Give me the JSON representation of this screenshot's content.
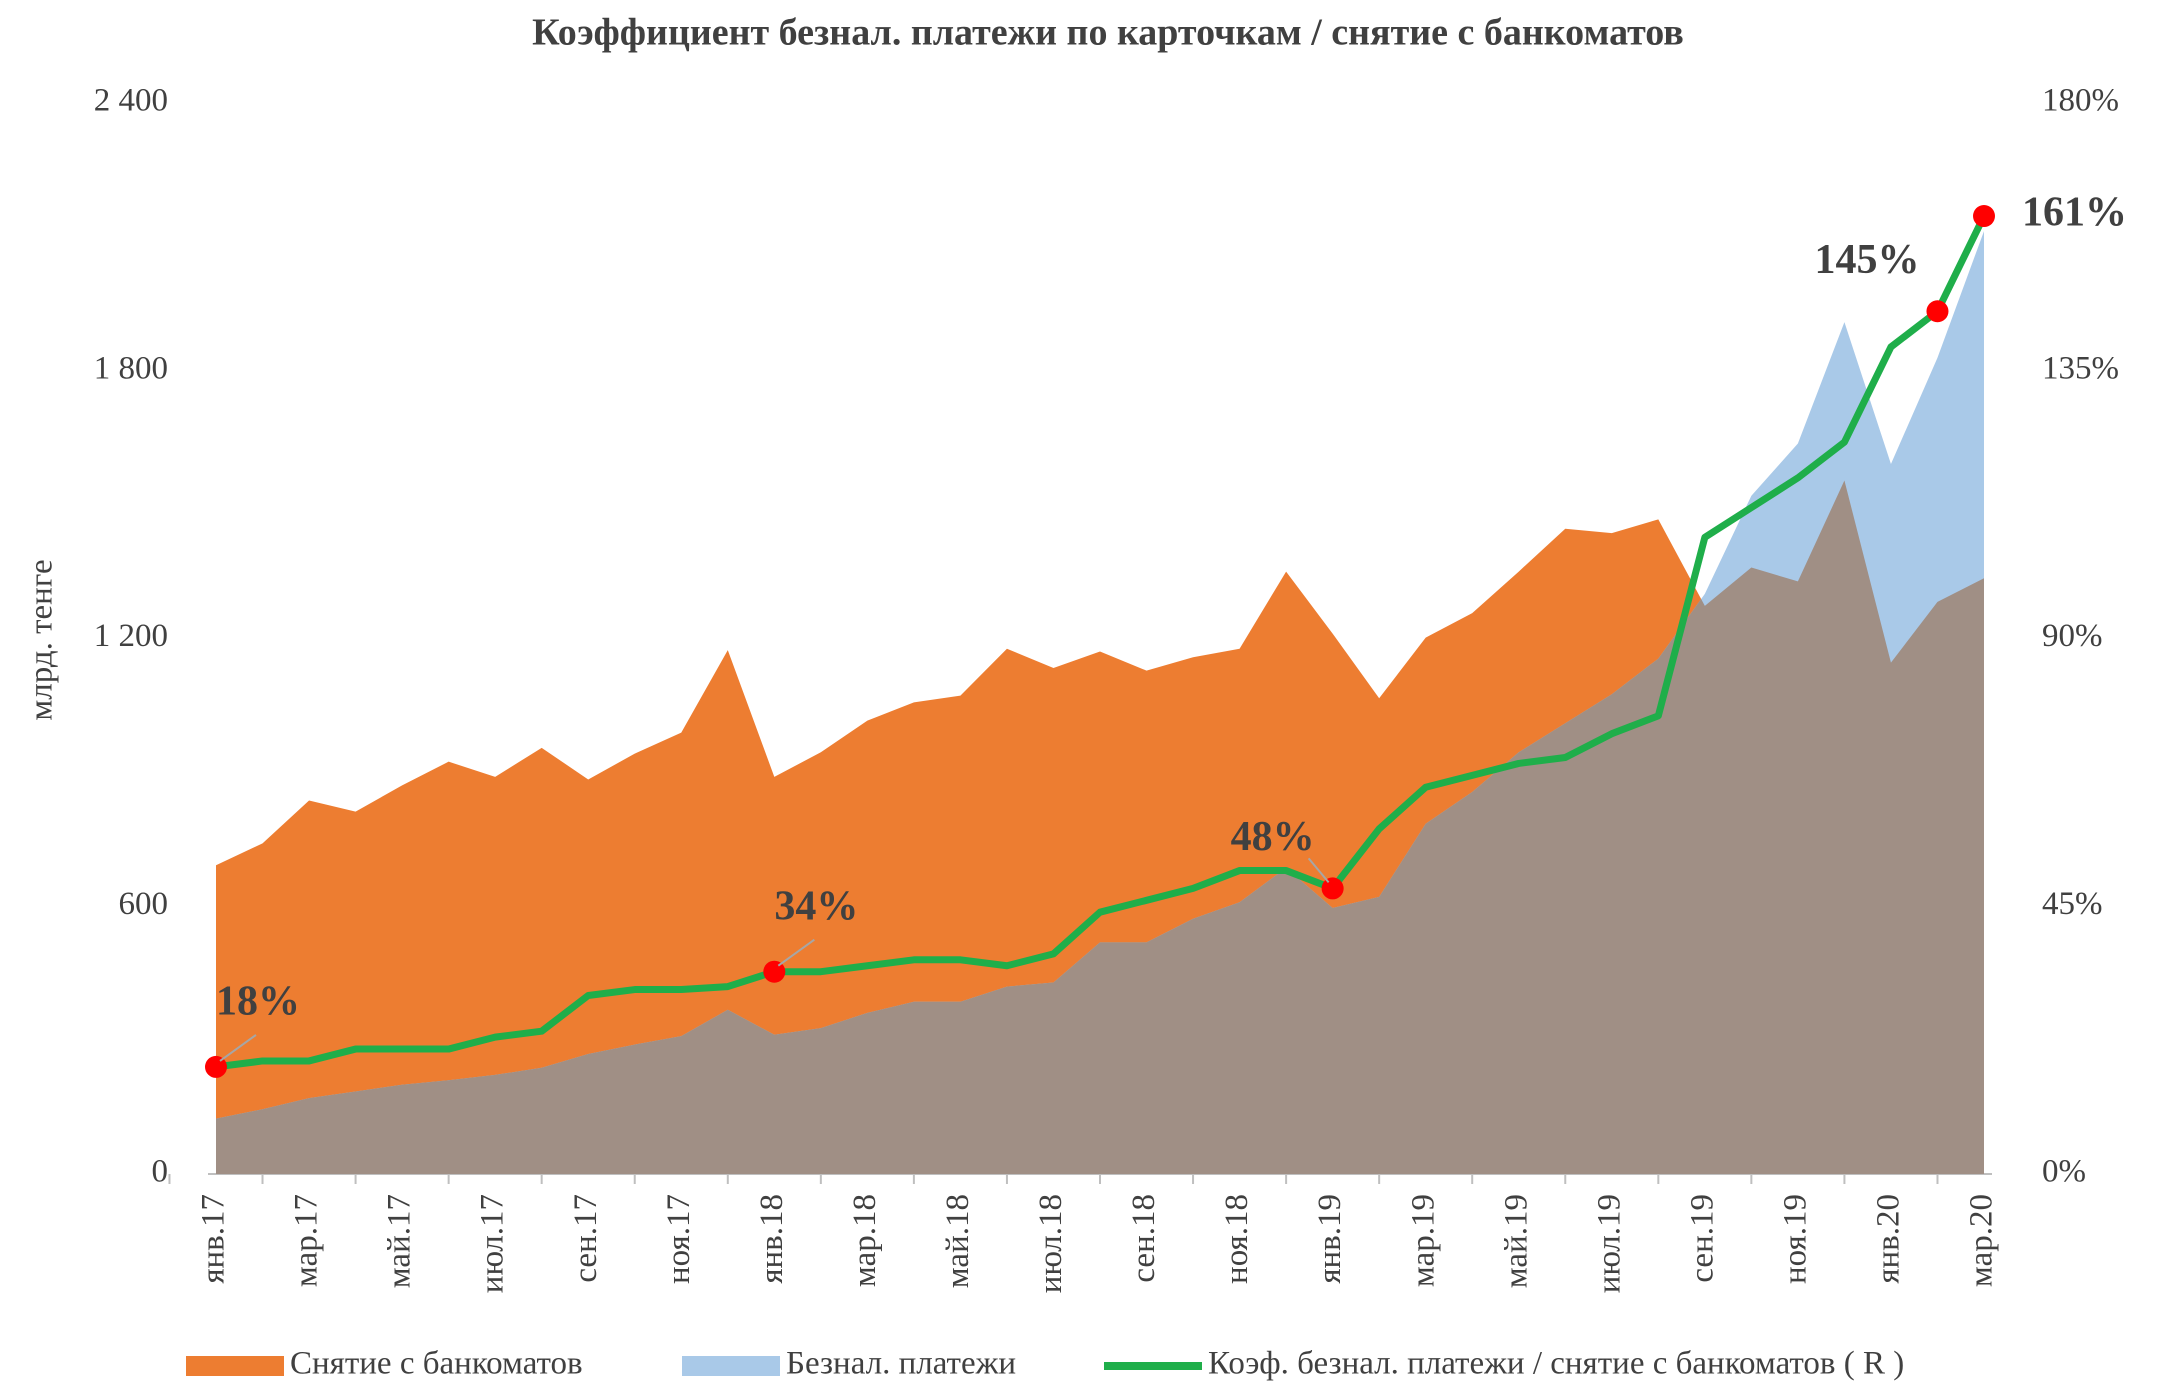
{
  "chart_data": {
    "type": "area",
    "title": "Коэффициент безнал. платежи по карточкам / снятие с банкоматов",
    "y_label": "млрд. тенге",
    "categories": [
      "янв.17",
      null,
      "мар.17",
      null,
      "май.17",
      null,
      "июл.17",
      null,
      "сен.17",
      null,
      "ноя.17",
      null,
      "янв.18",
      null,
      "мар.18",
      null,
      "май.18",
      null,
      "июл.18",
      null,
      "сен.18",
      null,
      "ноя.18",
      null,
      "янв.19",
      null,
      "мар.19",
      null,
      "май.19",
      null,
      "июл.19",
      null,
      "сен.19",
      null,
      "ноя.19",
      null,
      "янв.20",
      null,
      "мар.20"
    ],
    "series": [
      {
        "name": "Снятие с банкоматов",
        "type": "area",
        "color": "#ed7d31",
        "values": [
          692,
          741,
          837,
          812,
          871,
          924,
          890,
          955,
          884,
          942,
          989,
          1174,
          890,
          945,
          1016,
          1057,
          1072,
          1177,
          1134,
          1171,
          1128,
          1158,
          1177,
          1350,
          1211,
          1066,
          1202,
          1257,
          1350,
          1446,
          1436,
          1467,
          1273,
          1359,
          1328,
          1554,
          1146,
          1282,
          1335
        ]
      },
      {
        "name": "Безнал. платежи",
        "type": "area",
        "color": "#a9c9e8",
        "values": [
          124,
          145,
          170,
          185,
          200,
          210,
          222,
          238,
          269,
          290,
          309,
          368,
          312,
          327,
          361,
          386,
          386,
          420,
          429,
          519,
          519,
          572,
          609,
          686,
          596,
          621,
          785,
          856,
          945,
          1010,
          1075,
          1155,
          1300,
          1520,
          1637,
          1909,
          1591,
          1829,
          2113
        ]
      },
      {
        "name": "Коэф. безнал. платежи / снятие с банкоматов ( R )",
        "type": "line",
        "axis": "y2",
        "color": "#1fae4a",
        "marker_color": "#ff0000",
        "values": [
          18,
          19,
          19,
          21,
          21,
          21,
          23,
          24,
          30,
          31,
          31,
          31.5,
          34,
          34,
          35,
          36,
          36,
          35,
          37,
          44,
          46,
          48,
          51,
          51,
          48,
          58,
          65,
          67,
          69,
          70,
          74,
          77,
          107,
          112,
          117,
          123,
          139,
          145,
          161
        ],
        "value_labels": [
          "18%",
          null,
          null,
          null,
          null,
          null,
          null,
          null,
          null,
          null,
          null,
          null,
          "34%",
          null,
          null,
          null,
          null,
          null,
          null,
          null,
          null,
          null,
          null,
          null,
          "48%",
          null,
          null,
          null,
          null,
          null,
          null,
          null,
          null,
          null,
          null,
          null,
          null,
          "145%",
          "161%"
        ]
      }
    ],
    "overlap_color": "#a08f85",
    "ylim": [
      0,
      2400
    ],
    "yticks": [
      0,
      600,
      {
        "value": 1200,
        "label": "1 200"
      },
      {
        "value": 1800,
        "label": "1 800"
      },
      {
        "value": 2400,
        "label": "2 400"
      }
    ],
    "y2lim": [
      0,
      180
    ],
    "y2ticks": [
      {
        "value": 0,
        "label": "0%"
      },
      {
        "value": 45,
        "label": "45%"
      },
      {
        "value": 90,
        "label": "90%"
      },
      {
        "value": 135,
        "label": "135%"
      },
      {
        "value": 180,
        "label": "180%"
      }
    ],
    "legend": "bottom"
  }
}
